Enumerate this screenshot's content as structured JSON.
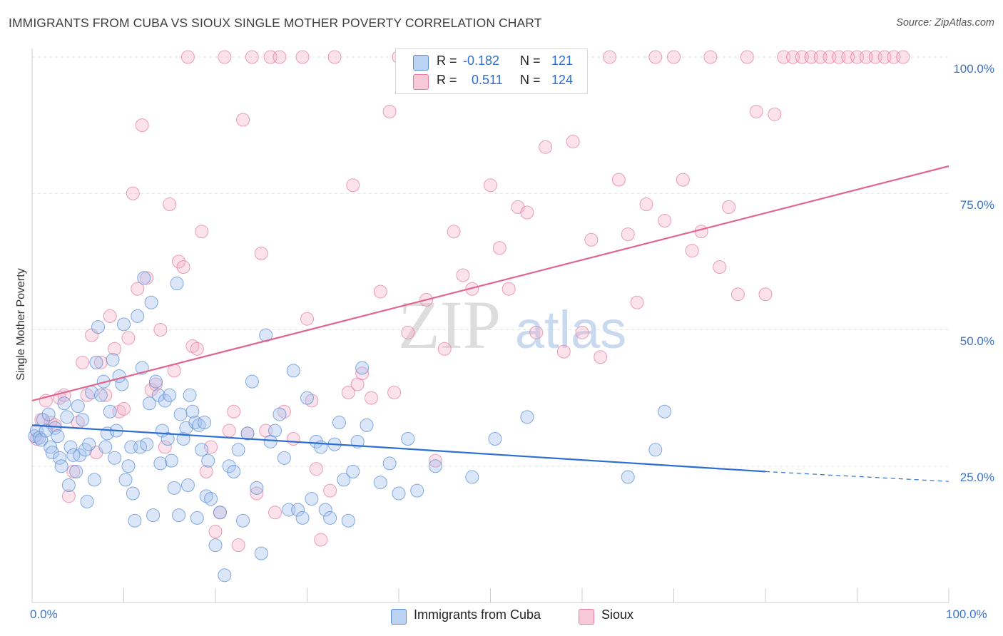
{
  "header": {
    "title": "IMMIGRANTS FROM CUBA VS SIOUX SINGLE MOTHER POVERTY CORRELATION CHART",
    "source": "Source: ZipAtlas.com"
  },
  "watermark": {
    "zip": "ZIP",
    "atlas": "atlas"
  },
  "legend": {
    "r_label": "R =",
    "n_label": "N =",
    "rows": [
      {
        "r": "-0.182",
        "n": "121",
        "color": "#5b8fd6"
      },
      {
        "r": "0.511",
        "n": "124",
        "color": "#e57fa0"
      }
    ]
  },
  "axis": {
    "ylabel": "Single Mother Poverty",
    "x_ticks": [
      "0.0%",
      "100.0%"
    ],
    "y_ticks": [
      "100.0%",
      "75.0%",
      "50.0%",
      "25.0%"
    ]
  },
  "bottom_legend": [
    {
      "label": "Immigrants from Cuba",
      "color": "#5b8fd6"
    },
    {
      "label": "Sioux",
      "color": "#e57fa0"
    }
  ],
  "chart_data": {
    "type": "scatter",
    "xlim": [
      0,
      100
    ],
    "ylim": [
      0,
      102
    ],
    "grid": true,
    "legend_position": "top-center",
    "series": [
      {
        "name": "Immigrants from Cuba",
        "color": "#5b8fd6",
        "trend": {
          "x": [
            0,
            80
          ],
          "y": [
            32.5,
            24.0
          ],
          "dashed_to": [
            100,
            22.2
          ]
        },
        "points": [
          [
            0.3,
            30.5
          ],
          [
            0.5,
            31.5
          ],
          [
            0.8,
            30.2
          ],
          [
            1.0,
            29.8
          ],
          [
            1.2,
            33.5
          ],
          [
            1.5,
            31.5
          ],
          [
            1.8,
            34.5
          ],
          [
            2.0,
            28.5
          ],
          [
            2.2,
            27.5
          ],
          [
            2.5,
            32.0
          ],
          [
            2.8,
            30.5
          ],
          [
            3.0,
            26.5
          ],
          [
            3.2,
            25.0
          ],
          [
            3.5,
            36.5
          ],
          [
            3.8,
            34.0
          ],
          [
            4.0,
            21.5
          ],
          [
            4.2,
            28.5
          ],
          [
            4.5,
            27.0
          ],
          [
            4.8,
            24.0
          ],
          [
            5.0,
            36.0
          ],
          [
            5.2,
            27.0
          ],
          [
            5.5,
            33.5
          ],
          [
            5.8,
            28.0
          ],
          [
            6.0,
            18.5
          ],
          [
            6.2,
            29.0
          ],
          [
            6.5,
            38.5
          ],
          [
            6.8,
            22.5
          ],
          [
            7.0,
            44.0
          ],
          [
            7.2,
            50.5
          ],
          [
            7.5,
            38.0
          ],
          [
            7.8,
            40.5
          ],
          [
            8.0,
            28.5
          ],
          [
            8.2,
            31.0
          ],
          [
            8.5,
            35.0
          ],
          [
            8.8,
            44.5
          ],
          [
            9.0,
            26.5
          ],
          [
            9.2,
            31.5
          ],
          [
            9.5,
            41.5
          ],
          [
            9.8,
            40.0
          ],
          [
            10.0,
            51.0
          ],
          [
            10.2,
            22.5
          ],
          [
            10.5,
            25.0
          ],
          [
            10.8,
            28.5
          ],
          [
            11.0,
            20.0
          ],
          [
            11.2,
            15.0
          ],
          [
            11.5,
            52.5
          ],
          [
            11.8,
            28.5
          ],
          [
            12.0,
            43.0
          ],
          [
            12.2,
            59.5
          ],
          [
            12.5,
            29.0
          ],
          [
            12.8,
            36.5
          ],
          [
            13.0,
            55.0
          ],
          [
            13.2,
            16.0
          ],
          [
            13.5,
            40.5
          ],
          [
            13.8,
            38.0
          ],
          [
            14.0,
            25.5
          ],
          [
            14.2,
            31.5
          ],
          [
            14.5,
            37.0
          ],
          [
            14.8,
            30.0
          ],
          [
            15.0,
            38.0
          ],
          [
            15.2,
            26.0
          ],
          [
            15.5,
            21.0
          ],
          [
            15.8,
            58.5
          ],
          [
            16.0,
            16.0
          ],
          [
            16.2,
            34.5
          ],
          [
            16.5,
            30.0
          ],
          [
            16.8,
            32.0
          ],
          [
            17.0,
            21.5
          ],
          [
            17.2,
            38.0
          ],
          [
            17.5,
            35.0
          ],
          [
            17.8,
            33.0
          ],
          [
            18.0,
            15.5
          ],
          [
            18.2,
            32.5
          ],
          [
            18.5,
            28.0
          ],
          [
            18.8,
            33.0
          ],
          [
            19.0,
            19.5
          ],
          [
            19.2,
            26.0
          ],
          [
            19.5,
            19.0
          ],
          [
            20.0,
            10.5
          ],
          [
            20.5,
            16.5
          ],
          [
            21.0,
            5.0
          ],
          [
            21.5,
            25.0
          ],
          [
            22.0,
            24.0
          ],
          [
            22.5,
            28.0
          ],
          [
            23.0,
            15.0
          ],
          [
            23.5,
            31.0
          ],
          [
            24.0,
            40.5
          ],
          [
            24.5,
            21.0
          ],
          [
            25.0,
            9.0
          ],
          [
            25.5,
            49.0
          ],
          [
            26.0,
            29.5
          ],
          [
            26.5,
            31.5
          ],
          [
            27.0,
            34.5
          ],
          [
            27.5,
            26.5
          ],
          [
            28.0,
            17.0
          ],
          [
            28.5,
            42.5
          ],
          [
            29.0,
            17.0
          ],
          [
            29.5,
            15.5
          ],
          [
            30.0,
            37.5
          ],
          [
            30.5,
            19.0
          ],
          [
            31.0,
            29.5
          ],
          [
            31.5,
            28.5
          ],
          [
            32.0,
            17.0
          ],
          [
            32.5,
            15.5
          ],
          [
            33.0,
            29.0
          ],
          [
            33.5,
            33.0
          ],
          [
            34.0,
            22.5
          ],
          [
            34.5,
            15.0
          ],
          [
            35.0,
            24.0
          ],
          [
            35.5,
            29.5
          ],
          [
            36.0,
            43.0
          ],
          [
            36.5,
            32.5
          ],
          [
            38.0,
            22.0
          ],
          [
            39.0,
            25.5
          ],
          [
            40.0,
            20.0
          ],
          [
            41.0,
            30.0
          ],
          [
            42.0,
            20.5
          ],
          [
            44.0,
            25.0
          ],
          [
            48.0,
            23.0
          ],
          [
            50.5,
            30.0
          ],
          [
            54.0,
            34.0
          ],
          [
            65.0,
            23.0
          ],
          [
            68.0,
            28.0
          ],
          [
            69.0,
            35.0
          ]
        ]
      },
      {
        "name": "Sioux",
        "color": "#e57fa0",
        "trend": {
          "x": [
            0,
            100
          ],
          "y": [
            37.0,
            80.0
          ]
        },
        "points": [
          [
            0.5,
            30.0
          ],
          [
            1.0,
            33.5
          ],
          [
            1.5,
            37.0
          ],
          [
            2.0,
            33.0
          ],
          [
            2.5,
            32.5
          ],
          [
            3.0,
            37.5
          ],
          [
            3.5,
            38.0
          ],
          [
            4.0,
            19.5
          ],
          [
            4.5,
            24.0
          ],
          [
            5.0,
            33.0
          ],
          [
            5.5,
            44.0
          ],
          [
            6.0,
            38.0
          ],
          [
            6.5,
            49.0
          ],
          [
            7.0,
            27.5
          ],
          [
            7.5,
            44.0
          ],
          [
            8.0,
            38.0
          ],
          [
            8.5,
            52.5
          ],
          [
            9.0,
            46.5
          ],
          [
            9.5,
            35.0
          ],
          [
            10.0,
            35.5
          ],
          [
            10.5,
            48.5
          ],
          [
            11.0,
            75.0
          ],
          [
            11.5,
            57.5
          ],
          [
            12.0,
            87.5
          ],
          [
            12.5,
            59.5
          ],
          [
            13.0,
            39.0
          ],
          [
            13.5,
            40.0
          ],
          [
            14.0,
            50.0
          ],
          [
            14.5,
            28.5
          ],
          [
            15.0,
            73.0
          ],
          [
            15.5,
            42.5
          ],
          [
            16.0,
            62.5
          ],
          [
            16.5,
            61.5
          ],
          [
            17.0,
            100.0
          ],
          [
            17.5,
            47.0
          ],
          [
            18.0,
            46.5
          ],
          [
            18.5,
            68.0
          ],
          [
            19.0,
            24.0
          ],
          [
            19.5,
            28.5
          ],
          [
            20.0,
            13.0
          ],
          [
            20.5,
            16.5
          ],
          [
            21.0,
            100.0
          ],
          [
            21.5,
            31.5
          ],
          [
            22.0,
            35.0
          ],
          [
            22.5,
            10.5
          ],
          [
            23.0,
            88.5
          ],
          [
            23.5,
            31.0
          ],
          [
            24.0,
            100.0
          ],
          [
            24.5,
            20.0
          ],
          [
            25.0,
            64.0
          ],
          [
            25.5,
            31.5
          ],
          [
            26.0,
            100.0
          ],
          [
            26.5,
            16.5
          ],
          [
            27.0,
            100.0
          ],
          [
            27.5,
            35.0
          ],
          [
            28.5,
            30.0
          ],
          [
            29.5,
            100.0
          ],
          [
            30.0,
            52.0
          ],
          [
            30.5,
            37.0
          ],
          [
            31.0,
            24.5
          ],
          [
            31.5,
            11.5
          ],
          [
            32.5,
            20.5
          ],
          [
            33.0,
            100.0
          ],
          [
            34.5,
            38.5
          ],
          [
            35.0,
            76.5
          ],
          [
            35.5,
            40.0
          ],
          [
            36.0,
            42.0
          ],
          [
            37.0,
            37.5
          ],
          [
            38.0,
            57.0
          ],
          [
            39.0,
            90.0
          ],
          [
            39.5,
            38.5
          ],
          [
            40.0,
            100.0
          ],
          [
            41.0,
            49.5
          ],
          [
            42.0,
            100.0
          ],
          [
            43.0,
            55.5
          ],
          [
            44.0,
            26.0
          ],
          [
            45.0,
            46.5
          ],
          [
            46.0,
            68.0
          ],
          [
            47.0,
            60.0
          ],
          [
            48.0,
            57.5
          ],
          [
            49.0,
            100.0
          ],
          [
            50.0,
            76.5
          ],
          [
            51.0,
            65.0
          ],
          [
            52.0,
            57.5
          ],
          [
            53.0,
            72.5
          ],
          [
            54.0,
            71.5
          ],
          [
            55.0,
            49.5
          ],
          [
            56.0,
            83.5
          ],
          [
            57.0,
            100.0
          ],
          [
            58.0,
            46.0
          ],
          [
            59.0,
            84.5
          ],
          [
            60.0,
            49.5
          ],
          [
            61.0,
            66.5
          ],
          [
            62.0,
            45.0
          ],
          [
            63.0,
            100.0
          ],
          [
            64.0,
            77.5
          ],
          [
            65.0,
            67.5
          ],
          [
            66.0,
            55.0
          ],
          [
            67.0,
            73.0
          ],
          [
            68.0,
            100.0
          ],
          [
            69.0,
            70.0
          ],
          [
            70.0,
            100.0
          ],
          [
            71.0,
            77.5
          ],
          [
            72.0,
            64.5
          ],
          [
            73.0,
            68.0
          ],
          [
            74.0,
            100.0
          ],
          [
            75.0,
            61.5
          ],
          [
            76.0,
            72.5
          ],
          [
            77.0,
            56.5
          ],
          [
            78.0,
            100.0
          ],
          [
            79.0,
            90.0
          ],
          [
            80.0,
            56.5
          ],
          [
            81.0,
            89.5
          ],
          [
            82.0,
            100.0
          ],
          [
            83.0,
            100.0
          ],
          [
            84.0,
            100.0
          ],
          [
            85.0,
            100.0
          ],
          [
            86.0,
            100.0
          ],
          [
            87.0,
            100.0
          ],
          [
            88.0,
            100.0
          ],
          [
            89.0,
            100.0
          ],
          [
            90.0,
            100.0
          ],
          [
            91.0,
            100.0
          ],
          [
            92.0,
            100.0
          ],
          [
            93.0,
            100.0
          ],
          [
            94.0,
            100.0
          ],
          [
            95.0,
            100.0
          ]
        ]
      }
    ]
  }
}
